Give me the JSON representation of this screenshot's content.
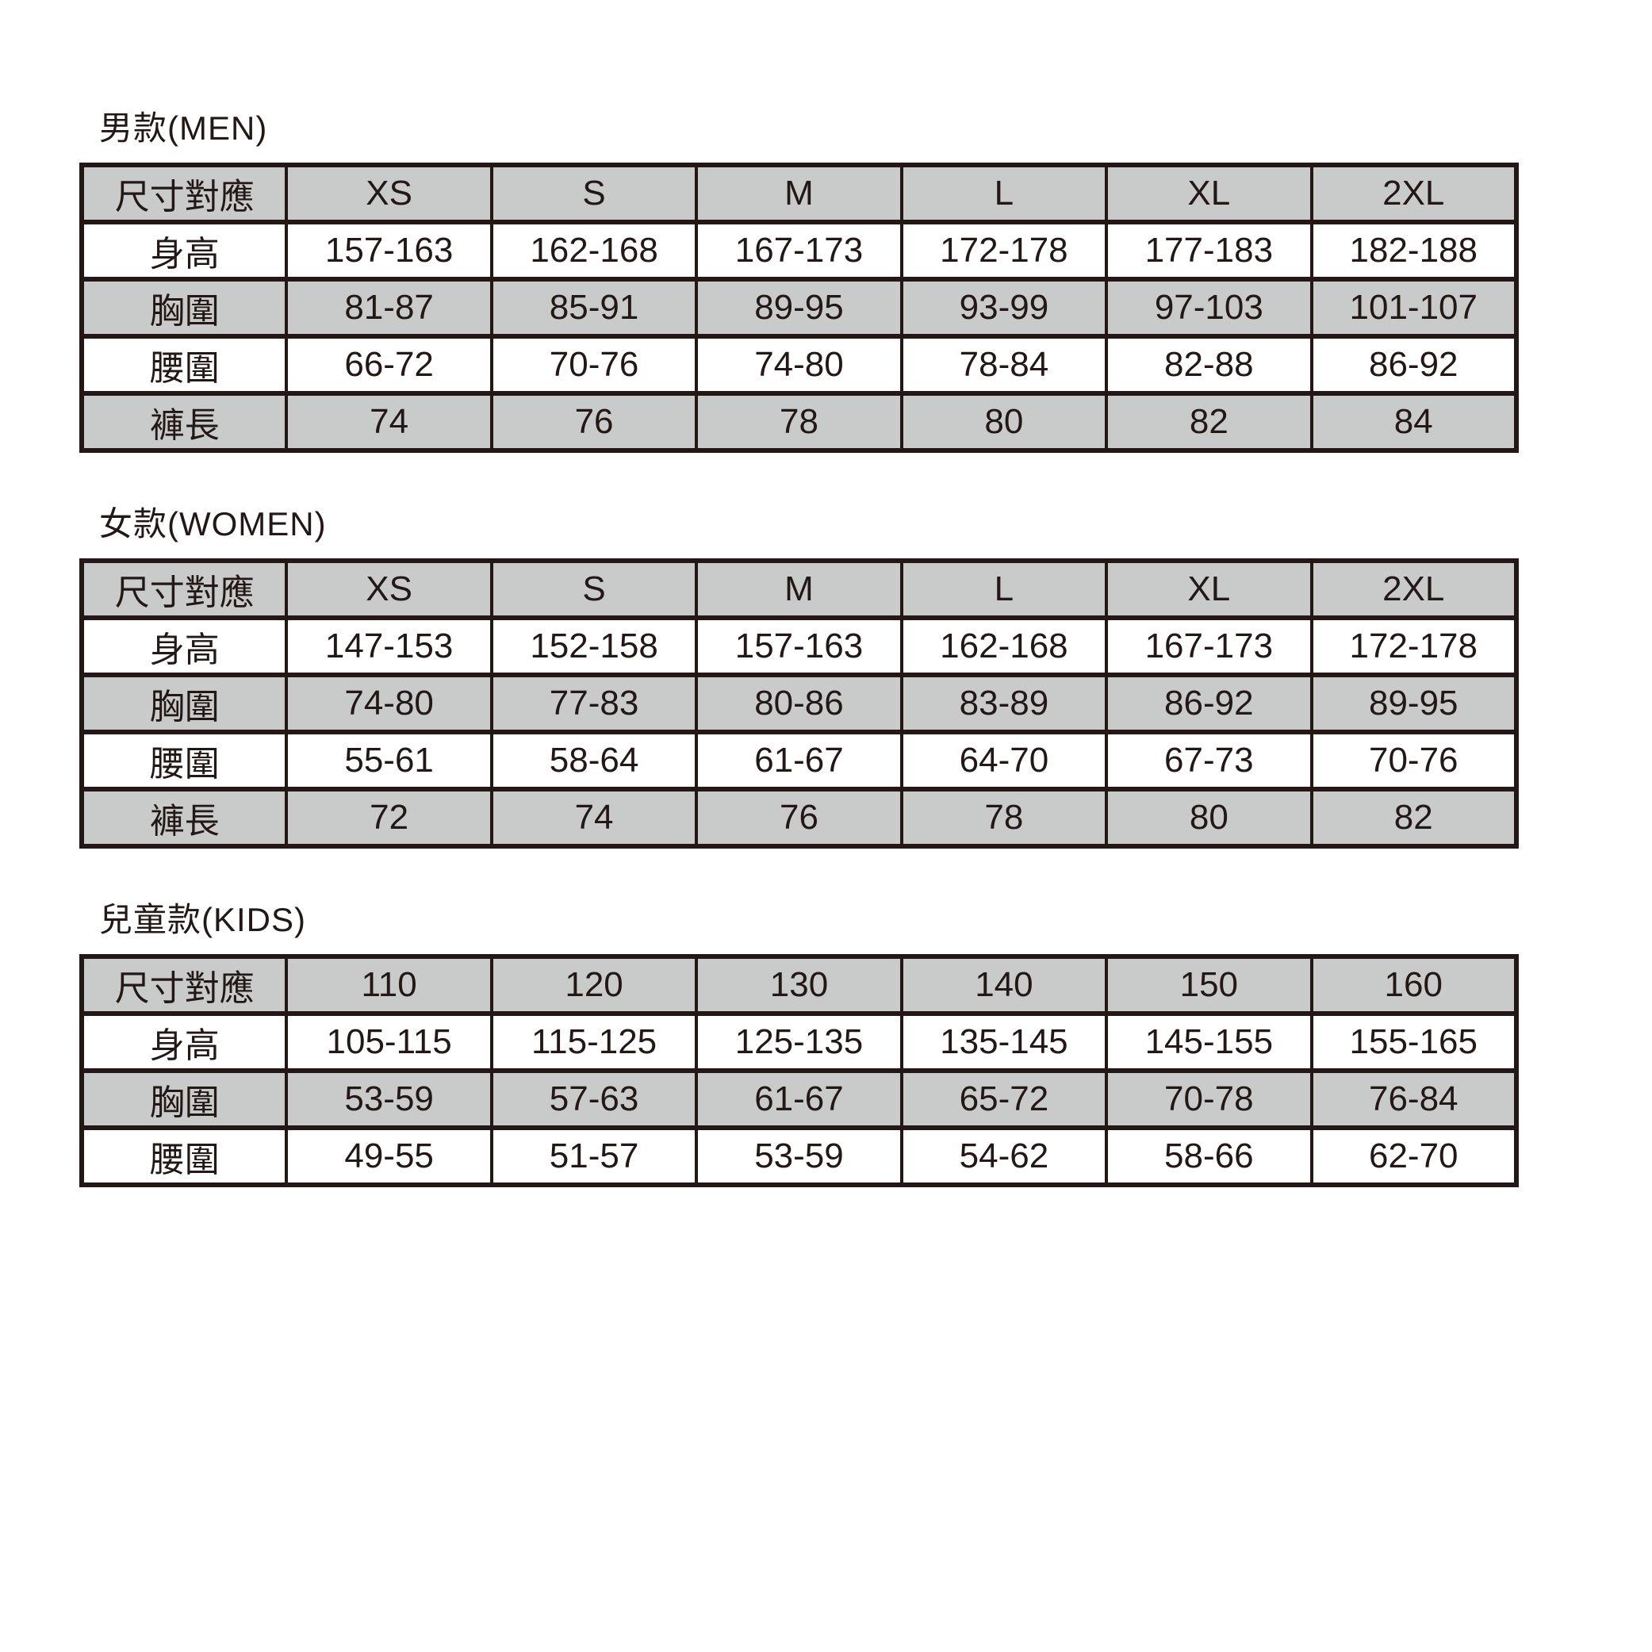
{
  "colors": {
    "page_bg": "#ffffff",
    "shaded_row_bg": "#c9caca",
    "border": "#231815",
    "text": "#231815"
  },
  "chart_data": [
    {
      "type": "table",
      "title": "男款(MEN)",
      "columns": [
        "尺寸對應",
        "XS",
        "S",
        "M",
        "L",
        "XL",
        "2XL"
      ],
      "rows": [
        {
          "label": "身高",
          "values": [
            "157-163",
            "162-168",
            "167-173",
            "172-178",
            "177-183",
            "182-188"
          ]
        },
        {
          "label": "胸圍",
          "values": [
            "81-87",
            "85-91",
            "89-95",
            "93-99",
            "97-103",
            "101-107"
          ]
        },
        {
          "label": "腰圍",
          "values": [
            "66-72",
            "70-76",
            "74-80",
            "78-84",
            "82-88",
            "86-92"
          ]
        },
        {
          "label": "褲長",
          "values": [
            "74",
            "76",
            "78",
            "80",
            "82",
            "84"
          ]
        }
      ]
    },
    {
      "type": "table",
      "title": "女款(WOMEN)",
      "columns": [
        "尺寸對應",
        "XS",
        "S",
        "M",
        "L",
        "XL",
        "2XL"
      ],
      "rows": [
        {
          "label": "身高",
          "values": [
            "147-153",
            "152-158",
            "157-163",
            "162-168",
            "167-173",
            "172-178"
          ]
        },
        {
          "label": "胸圍",
          "values": [
            "74-80",
            "77-83",
            "80-86",
            "83-89",
            "86-92",
            "89-95"
          ]
        },
        {
          "label": "腰圍",
          "values": [
            "55-61",
            "58-64",
            "61-67",
            "64-70",
            "67-73",
            "70-76"
          ]
        },
        {
          "label": "褲長",
          "values": [
            "72",
            "74",
            "76",
            "78",
            "80",
            "82"
          ]
        }
      ]
    },
    {
      "type": "table",
      "title": "兒童款(KIDS)",
      "columns": [
        "尺寸對應",
        "110",
        "120",
        "130",
        "140",
        "150",
        "160"
      ],
      "rows": [
        {
          "label": "身高",
          "values": [
            "105-115",
            "115-125",
            "125-135",
            "135-145",
            "145-155",
            "155-165"
          ]
        },
        {
          "label": "胸圍",
          "values": [
            "53-59",
            "57-63",
            "61-67",
            "65-72",
            "70-78",
            "76-84"
          ]
        },
        {
          "label": "腰圍",
          "values": [
            "49-55",
            "51-57",
            "53-59",
            "54-62",
            "58-66",
            "62-70"
          ]
        }
      ]
    }
  ]
}
